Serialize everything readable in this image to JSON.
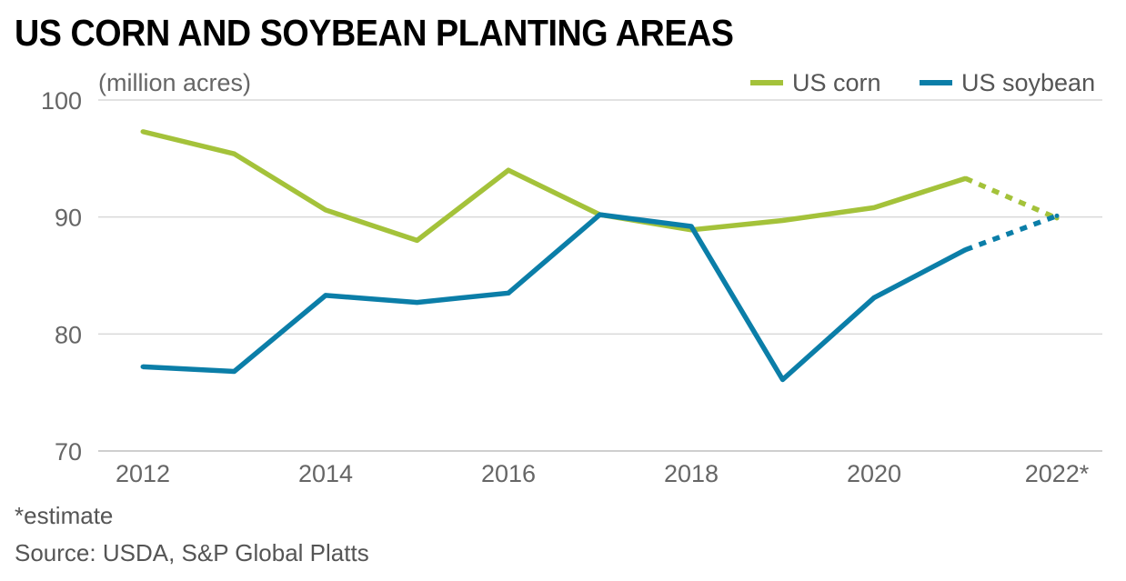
{
  "title": "US CORN AND SOYBEAN PLANTING AREAS",
  "note": "*estimate",
  "source": "Source: USDA, S&P Global Platts",
  "colors": {
    "corn": "#a4c23a",
    "soybean": "#0b7ea8",
    "grid": "#d9d9d9",
    "text": "#666666"
  },
  "chart_data": {
    "type": "line",
    "unit_label": "(million acres)",
    "x": [
      2012,
      2013,
      2014,
      2015,
      2016,
      2017,
      2018,
      2019,
      2020,
      2021,
      2022
    ],
    "x_tick_labels": [
      "2012",
      "2014",
      "2016",
      "2018",
      "2020",
      "2022*"
    ],
    "x_tick_values": [
      2012,
      2014,
      2016,
      2018,
      2020,
      2022
    ],
    "y_ticks": [
      70,
      80,
      90,
      100
    ],
    "ylim": [
      70,
      100
    ],
    "grid": true,
    "legend_position": "top-right",
    "estimate_from_x": 2021,
    "series": [
      {
        "name": "US corn",
        "color": "#a4c23a",
        "values": [
          97.3,
          95.4,
          90.6,
          88.0,
          94.0,
          90.2,
          88.9,
          89.7,
          90.8,
          93.3,
          89.9
        ]
      },
      {
        "name": "US soybean",
        "color": "#0b7ea8",
        "values": [
          77.2,
          76.8,
          83.3,
          82.7,
          83.5,
          90.2,
          89.2,
          76.1,
          83.1,
          87.2,
          90.1
        ]
      }
    ]
  }
}
